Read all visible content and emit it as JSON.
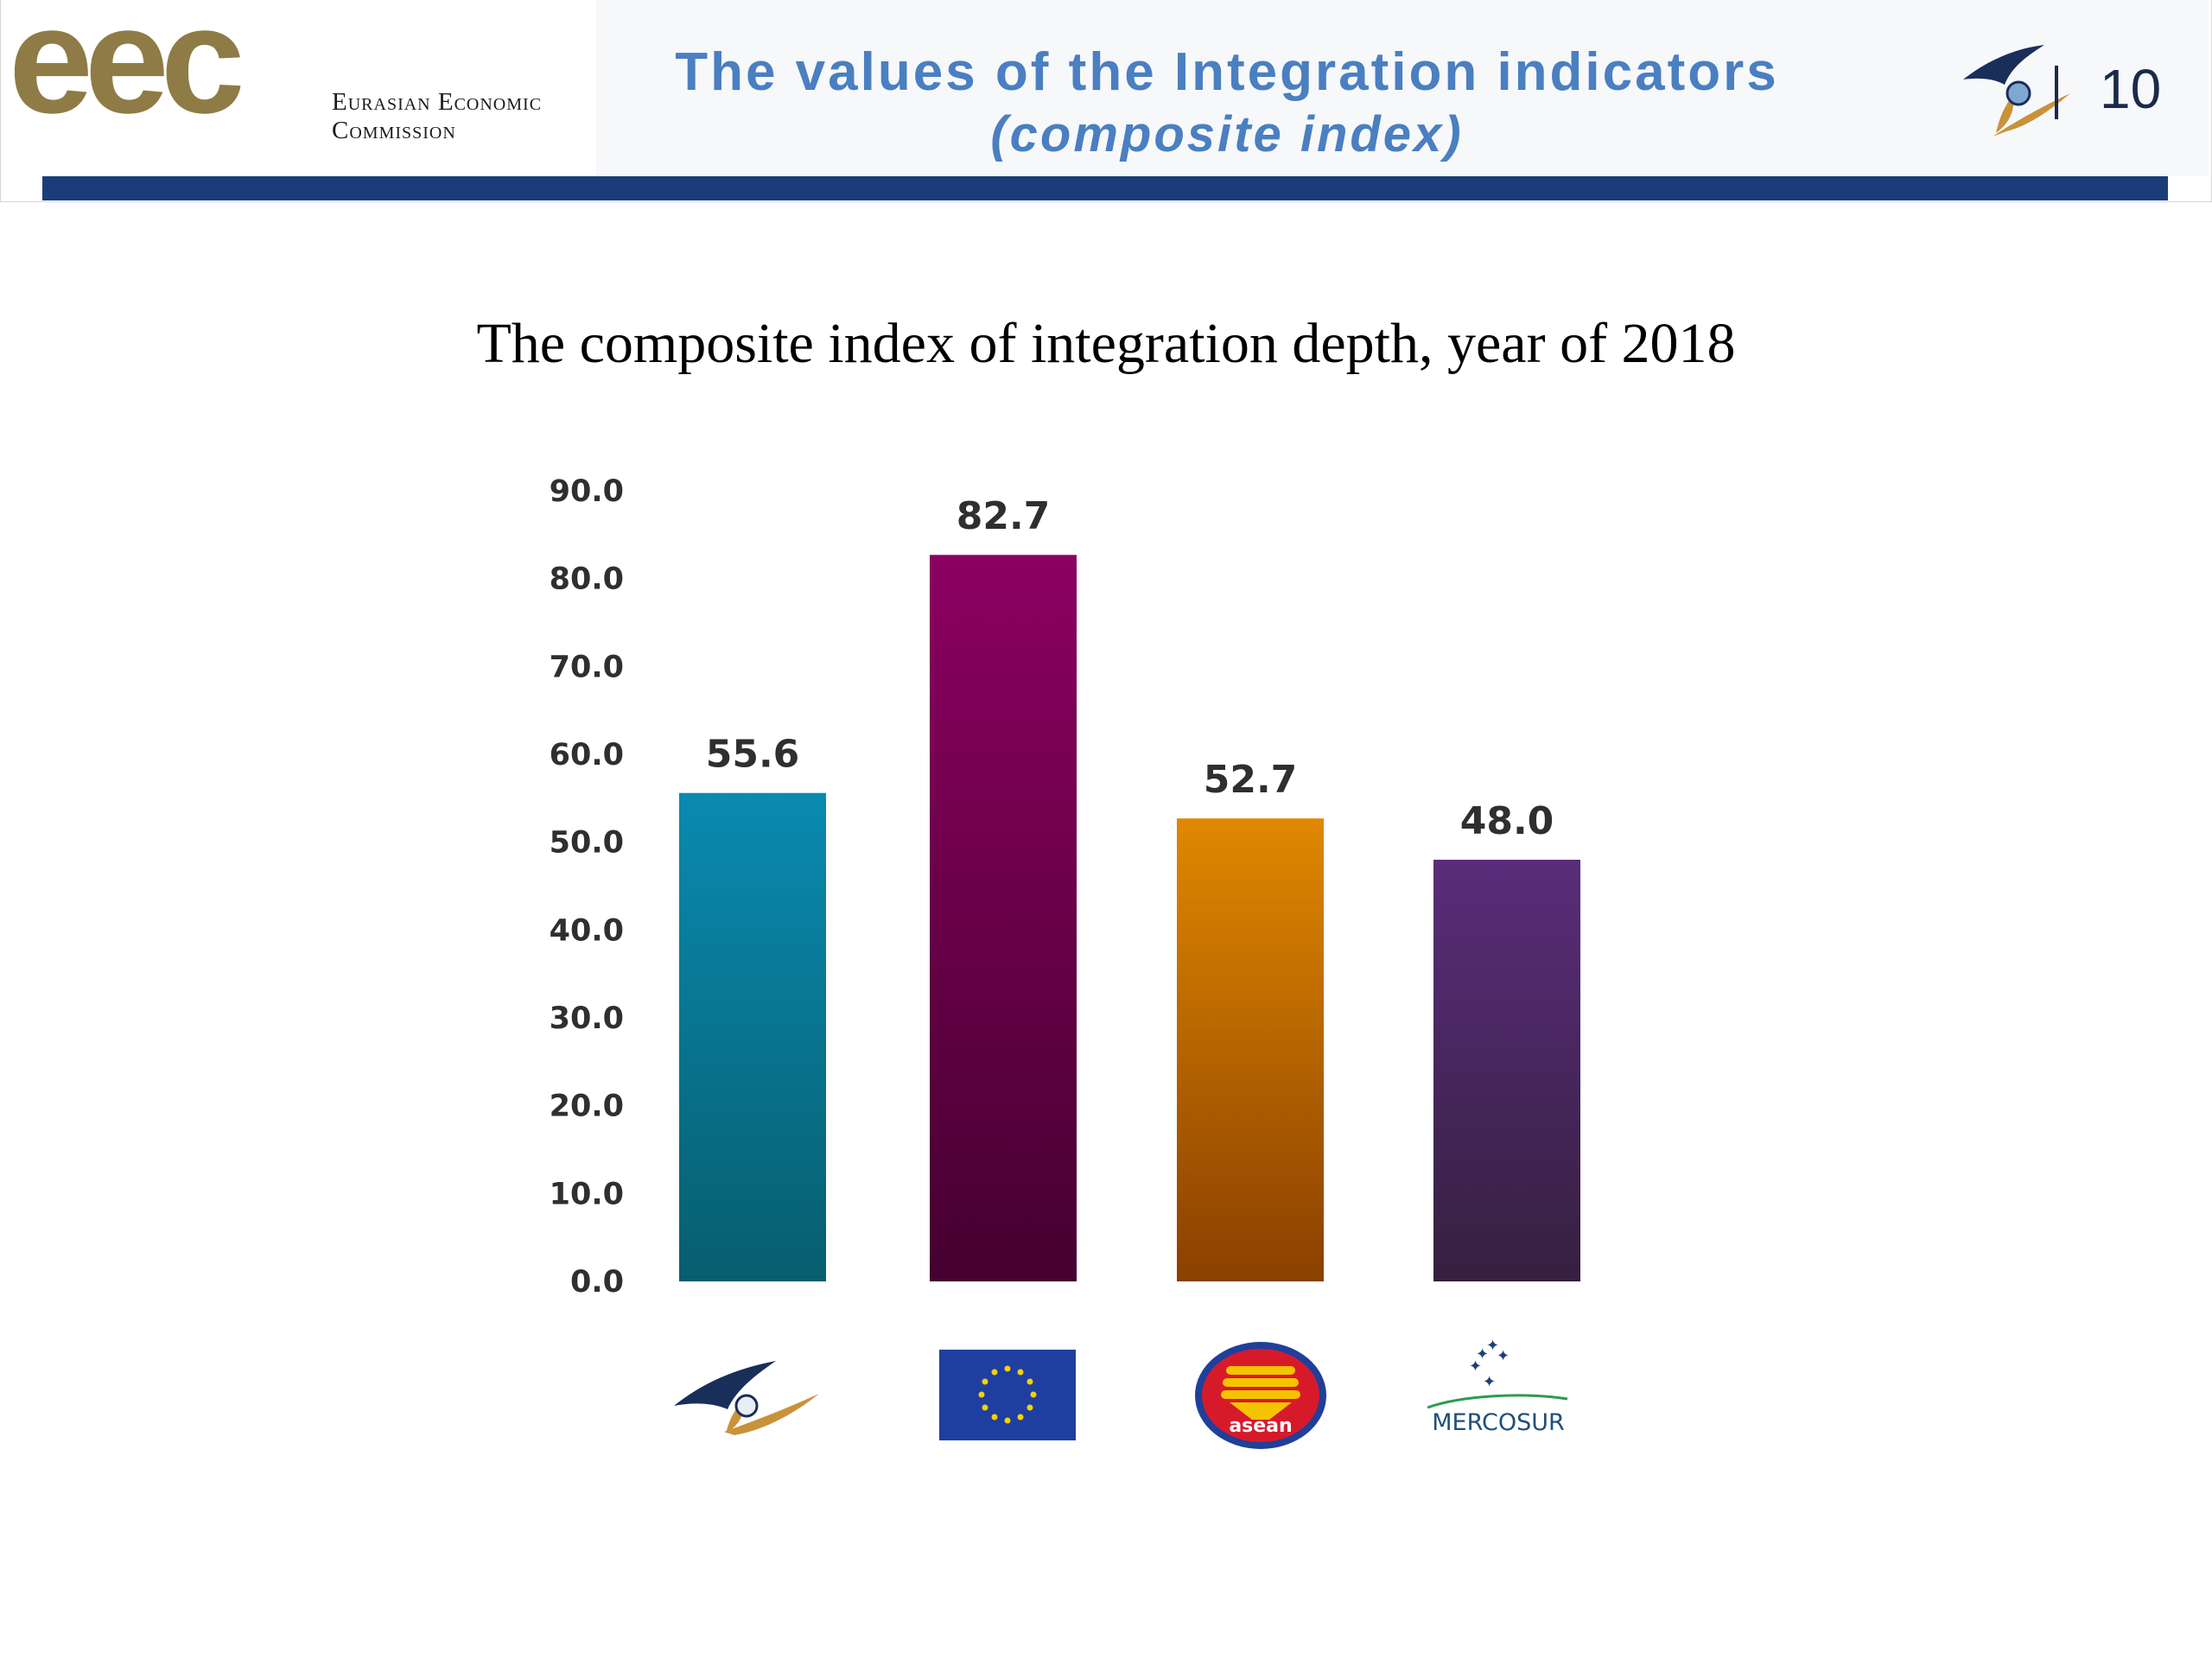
{
  "header": {
    "logo_text": "eec",
    "org_name_line1": "Eurasian Economic",
    "org_name_line2": "Commission",
    "title": "The values of the Integration indicators",
    "subtitle": "(composite index)",
    "page_number": "10",
    "emblem_icon": "eaeu-emblem-icon"
  },
  "colors": {
    "title_blue": "#4a7fc1",
    "band_navy": "#1a3d7a",
    "logo_gold": "#8f7b45"
  },
  "chart_data": {
    "type": "bar",
    "title": "The composite index of integration depth, year of 2018",
    "categories": [
      "EAEU",
      "EU",
      "ASEAN",
      "MERCOSUR"
    ],
    "category_icons": [
      "eaeu-emblem-icon",
      "eu-flag-icon",
      "asean-emblem-icon",
      "mercosur-logo-icon"
    ],
    "values": [
      55.6,
      82.7,
      52.7,
      48.0
    ],
    "value_labels": [
      "55.6",
      "82.7",
      "52.7",
      "48.0"
    ],
    "bar_colors": [
      [
        "#0a8ab0",
        "#075e6e"
      ],
      [
        "#8c0060",
        "#450030"
      ],
      [
        "#e08800",
        "#8a4000"
      ],
      [
        "#5a2c7a",
        "#352040"
      ]
    ],
    "ylim": [
      0,
      90
    ],
    "yticks": [
      "0.0",
      "10.0",
      "20.0",
      "30.0",
      "40.0",
      "50.0",
      "60.0",
      "70.0",
      "80.0",
      "90.0"
    ],
    "grid": false,
    "legend": "none",
    "mercosur_logo_text": "MERCOSUR"
  }
}
